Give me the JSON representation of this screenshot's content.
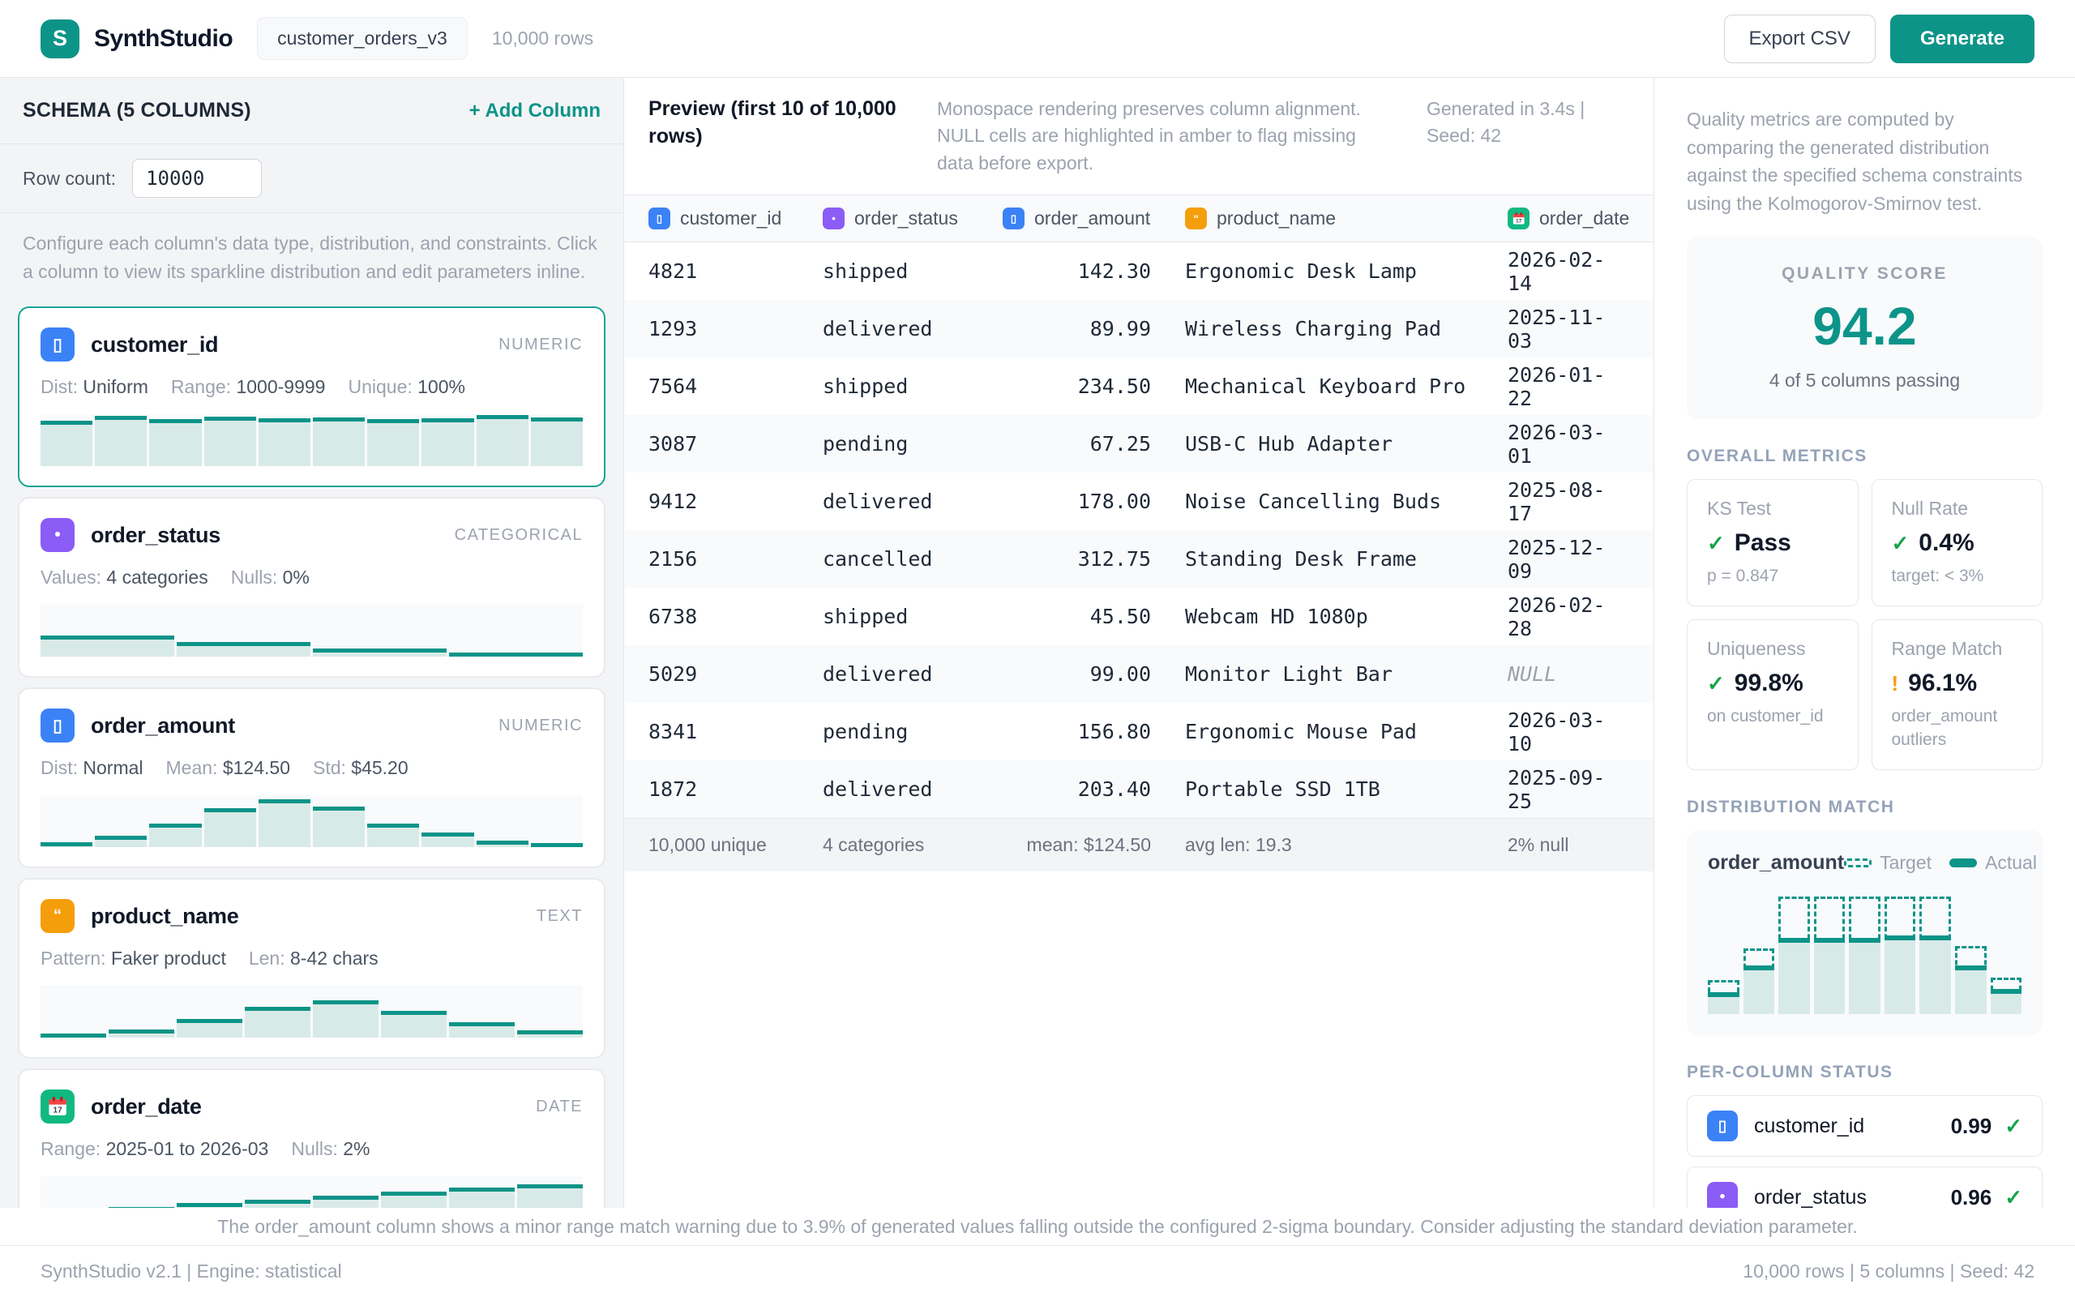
{
  "colors": {
    "accent": "#0d9488",
    "spark_fill": "#d8eae7",
    "numeric_blue": "#3b82f6",
    "categorical_purple": "#8b5cf6",
    "text_amber": "#f59e0b",
    "date_green": "#10b981",
    "success_green": "#16a34a",
    "warning_amber": "#f59e0b"
  },
  "header": {
    "logo_letter": "S",
    "app_title": "SynthStudio",
    "dataset_badge": "customer_orders_v3",
    "rows_label": "10,000 rows",
    "export_button": "Export CSV",
    "generate_button": "Generate"
  },
  "sidebar": {
    "heading": "SCHEMA (5 COLUMNS)",
    "add_column": "+ Add Column",
    "row_count_label": "Row count:",
    "row_count_value": "10000",
    "description": "Configure each column's data type, distribution, and constraints. Click a column to view its sparkline distribution and edit parameters inline.",
    "cards": [
      {
        "name": "customer_id",
        "type": "NUMERIC",
        "icon": "numeric-icon",
        "icon_color": "#3b82f6",
        "icon_glyph": "▯",
        "selected": true,
        "meta": [
          [
            "Dist:",
            "Uniform"
          ],
          [
            "Range:",
            "1000-9999"
          ],
          [
            "Unique:",
            "100%"
          ]
        ],
        "sparkline": [
          88,
          97,
          91,
          96,
          92,
          94,
          91,
          92,
          99,
          93
        ]
      },
      {
        "name": "order_status",
        "type": "CATEGORICAL",
        "icon": "categorical-icon",
        "icon_color": "#8b5cf6",
        "icon_glyph": "•",
        "selected": false,
        "meta": [
          [
            "Values:",
            "4 categories"
          ],
          [
            "Nulls:",
            "0%"
          ]
        ],
        "sparkline": [
          40,
          28,
          16,
          8
        ]
      },
      {
        "name": "order_amount",
        "type": "NUMERIC",
        "icon": "numeric-icon",
        "icon_color": "#3b82f6",
        "icon_glyph": "▯",
        "selected": false,
        "meta": [
          [
            "Dist:",
            "Normal"
          ],
          [
            "Mean:",
            "$124.50"
          ],
          [
            "Std:",
            "$45.20"
          ]
        ],
        "sparkline": [
          10,
          22,
          45,
          75,
          92,
          78,
          45,
          28,
          12,
          6
        ]
      },
      {
        "name": "product_name",
        "type": "TEXT",
        "icon": "text-icon",
        "icon_color": "#f59e0b",
        "icon_glyph": "“",
        "selected": false,
        "meta": [
          [
            "Pattern:",
            "Faker product"
          ],
          [
            "Len:",
            "8-42 chars"
          ]
        ],
        "sparkline": [
          8,
          16,
          36,
          60,
          72,
          52,
          30,
          14
        ]
      },
      {
        "name": "order_date",
        "type": "DATE",
        "icon": "calendar-icon",
        "icon_color": "#10b981",
        "icon_glyph": "",
        "selected": false,
        "meta": [
          [
            "Range:",
            "2025-01 to 2026-03"
          ],
          [
            "Nulls:",
            "2%"
          ]
        ],
        "sparkline": [
          30,
          40,
          48,
          55,
          62,
          70,
          78,
          85
        ]
      }
    ]
  },
  "preview": {
    "title": "Preview (first 10 of 10,000 rows)",
    "description": "Monospace rendering preserves column alignment. NULL cells are highlighted in amber to flag missing data before export.",
    "generated": "Generated in 3.4s | Seed: 42",
    "columns": [
      {
        "label": "customer_id",
        "icon": "numeric-icon",
        "color": "#3b82f6",
        "glyph": "▯"
      },
      {
        "label": "order_status",
        "icon": "categorical-icon",
        "color": "#8b5cf6",
        "glyph": "•"
      },
      {
        "label": "order_amount",
        "icon": "numeric-icon",
        "color": "#3b82f6",
        "glyph": "▯"
      },
      {
        "label": "product_name",
        "icon": "text-icon",
        "color": "#f59e0b",
        "glyph": "“"
      },
      {
        "label": "order_date",
        "icon": "calendar-icon",
        "color": "#10b981",
        "glyph": ""
      }
    ],
    "rows": [
      [
        "4821",
        "shipped",
        "142.30",
        "Ergonomic Desk Lamp",
        "2026-02-14"
      ],
      [
        "1293",
        "delivered",
        "89.99",
        "Wireless Charging Pad",
        "2025-11-03"
      ],
      [
        "7564",
        "shipped",
        "234.50",
        "Mechanical Keyboard Pro",
        "2026-01-22"
      ],
      [
        "3087",
        "pending",
        "67.25",
        "USB-C Hub Adapter",
        "2026-03-01"
      ],
      [
        "9412",
        "delivered",
        "178.00",
        "Noise Cancelling Buds",
        "2025-08-17"
      ],
      [
        "2156",
        "cancelled",
        "312.75",
        "Standing Desk Frame",
        "2025-12-09"
      ],
      [
        "6738",
        "shipped",
        "45.50",
        "Webcam HD 1080p",
        "2026-02-28"
      ],
      [
        "5029",
        "delivered",
        "99.00",
        "Monitor Light Bar",
        "NULL"
      ],
      [
        "8341",
        "pending",
        "156.80",
        "Ergonomic Mouse Pad",
        "2026-03-10"
      ],
      [
        "1872",
        "delivered",
        "203.40",
        "Portable SSD 1TB",
        "2025-09-25"
      ]
    ],
    "summary": [
      "10,000 unique",
      "4 categories",
      "mean: $124.50",
      "avg len: 19.3",
      "2% null"
    ]
  },
  "quality": {
    "intro": "Quality metrics are computed by comparing the generated distribution against the specified schema constraints using the Kolmogorov-Smirnov test.",
    "score_label": "QUALITY SCORE",
    "score": "94.2",
    "score_sub": "4 of 5 columns passing",
    "overall_heading": "OVERALL METRICS",
    "metrics": [
      {
        "label": "KS Test",
        "status": "pass",
        "value": "Pass",
        "sub": "p = 0.847"
      },
      {
        "label": "Null Rate",
        "status": "pass",
        "value": "0.4%",
        "sub": "target: < 3%"
      },
      {
        "label": "Uniqueness",
        "status": "pass",
        "value": "99.8%",
        "sub": "on customer_id"
      },
      {
        "label": "Range Match",
        "status": "warn",
        "value": "96.1%",
        "sub": "order_amount outliers"
      }
    ],
    "dist_heading": "DISTRIBUTION MATCH",
    "chart": {
      "type": "bar",
      "column": "order_amount",
      "legend": [
        "Target",
        "Actual"
      ],
      "target": [
        28,
        54,
        97,
        97,
        97,
        97,
        97,
        56,
        30
      ],
      "actual": [
        18,
        40,
        63,
        63,
        63,
        65,
        65,
        40,
        21
      ]
    },
    "per_column_heading": "PER-COLUMN STATUS",
    "per_column": [
      {
        "name": "customer_id",
        "icon": "numeric-icon",
        "color": "#3b82f6",
        "glyph": "▯",
        "score": "0.99",
        "status": "pass"
      },
      {
        "name": "order_status",
        "icon": "categorical-icon",
        "color": "#8b5cf6",
        "glyph": "•",
        "score": "0.96",
        "status": "pass"
      }
    ]
  },
  "note": "The order_amount column shows a minor range match warning due to 3.9% of generated values falling outside the configured 2-sigma boundary. Consider adjusting the standard deviation parameter.",
  "footer": {
    "left": "SynthStudio v2.1 | Engine: statistical",
    "right": "10,000 rows | 5 columns | Seed: 42"
  }
}
